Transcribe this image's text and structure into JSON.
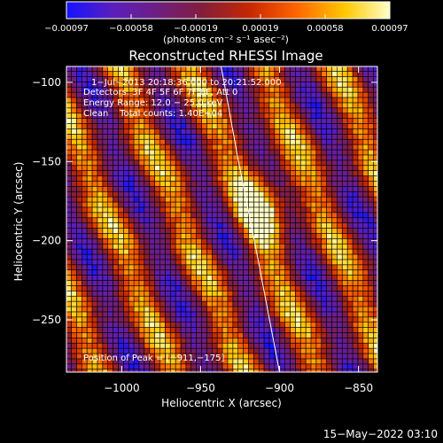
{
  "chart_data": {
    "type": "heatmap",
    "title": "Reconstructed RHESSI Image",
    "xlabel": "Heliocentric X (arcsec)",
    "ylabel": "Heliocentric Y (arcsec)",
    "xlim": [
      -1035,
      -838
    ],
    "ylim": [
      -283,
      -90
    ],
    "x_ticks": [
      -1000,
      -950,
      -900,
      -850
    ],
    "x_tick_labels": [
      "−1000",
      "−950",
      "−900",
      "−850"
    ],
    "y_ticks": [
      -100,
      -150,
      -200,
      -250
    ],
    "y_tick_labels": [
      "−100",
      "−150",
      "−200",
      "−250"
    ],
    "colorbar": {
      "range": [
        -0.00097,
        0.00097
      ],
      "tick_labels": [
        "−0.00097",
        "−0.00058",
        "−0.00019",
        "0.00019",
        "0.00058",
        "0.00097"
      ],
      "unit_label": "(photons cm⁻² s⁻¹ asec⁻²)",
      "colors": [
        "#1414ff",
        "#5a1ebe",
        "#6e1e82",
        "#821e3c",
        "#c82800",
        "#ff6400",
        "#ffc800",
        "#ffffc8"
      ]
    },
    "annotations": [
      "1−Jul−2013 20:18:36.000 to 20:21:52.000",
      "Detectors: 3F 4F 5F 6F 7F 8F, Att 0",
      "Energy Range: 12.0 − 25.0 keV",
      "Clean    Total counts: 1.40E+04"
    ],
    "peak": {
      "label": "Position of Peak = [−911,−175]",
      "x": -911,
      "y": -175
    },
    "limb_curve": {
      "x": [
        -937,
        -926,
        -914,
        -900
      ],
      "y": [
        -90,
        -150,
        -210,
        -283
      ]
    },
    "grid": false
  },
  "footer": {
    "timestamp": "15−May−2022 03:10"
  }
}
